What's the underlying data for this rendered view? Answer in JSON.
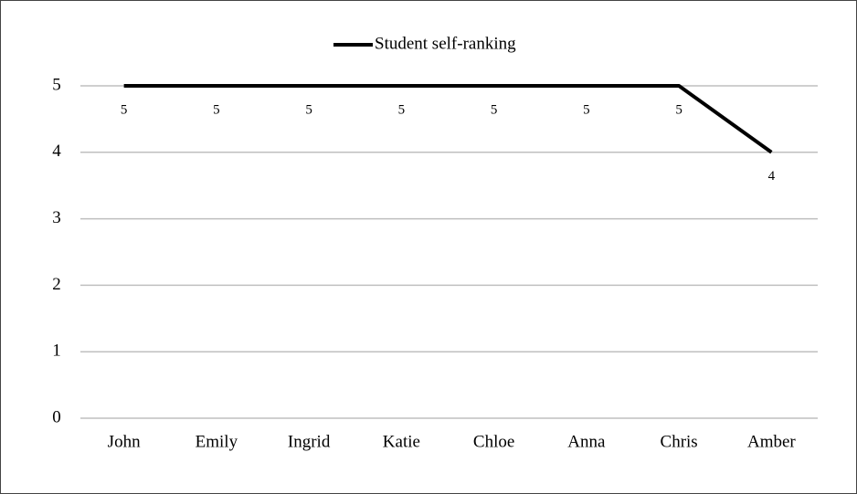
{
  "chart_data": {
    "type": "line",
    "categories": [
      "John",
      "Emily",
      "Ingrid",
      "Katie",
      "Chloe",
      "Anna",
      "Chris",
      "Amber"
    ],
    "series": [
      {
        "name": "Student self-ranking",
        "color": "#000000",
        "values": [
          5,
          5,
          5,
          5,
          5,
          5,
          5,
          4
        ]
      }
    ],
    "ylim": [
      0,
      5
    ],
    "yticks": [
      0,
      1,
      2,
      3,
      4,
      5
    ],
    "grid": true,
    "legend": "top",
    "data_labels": true
  }
}
